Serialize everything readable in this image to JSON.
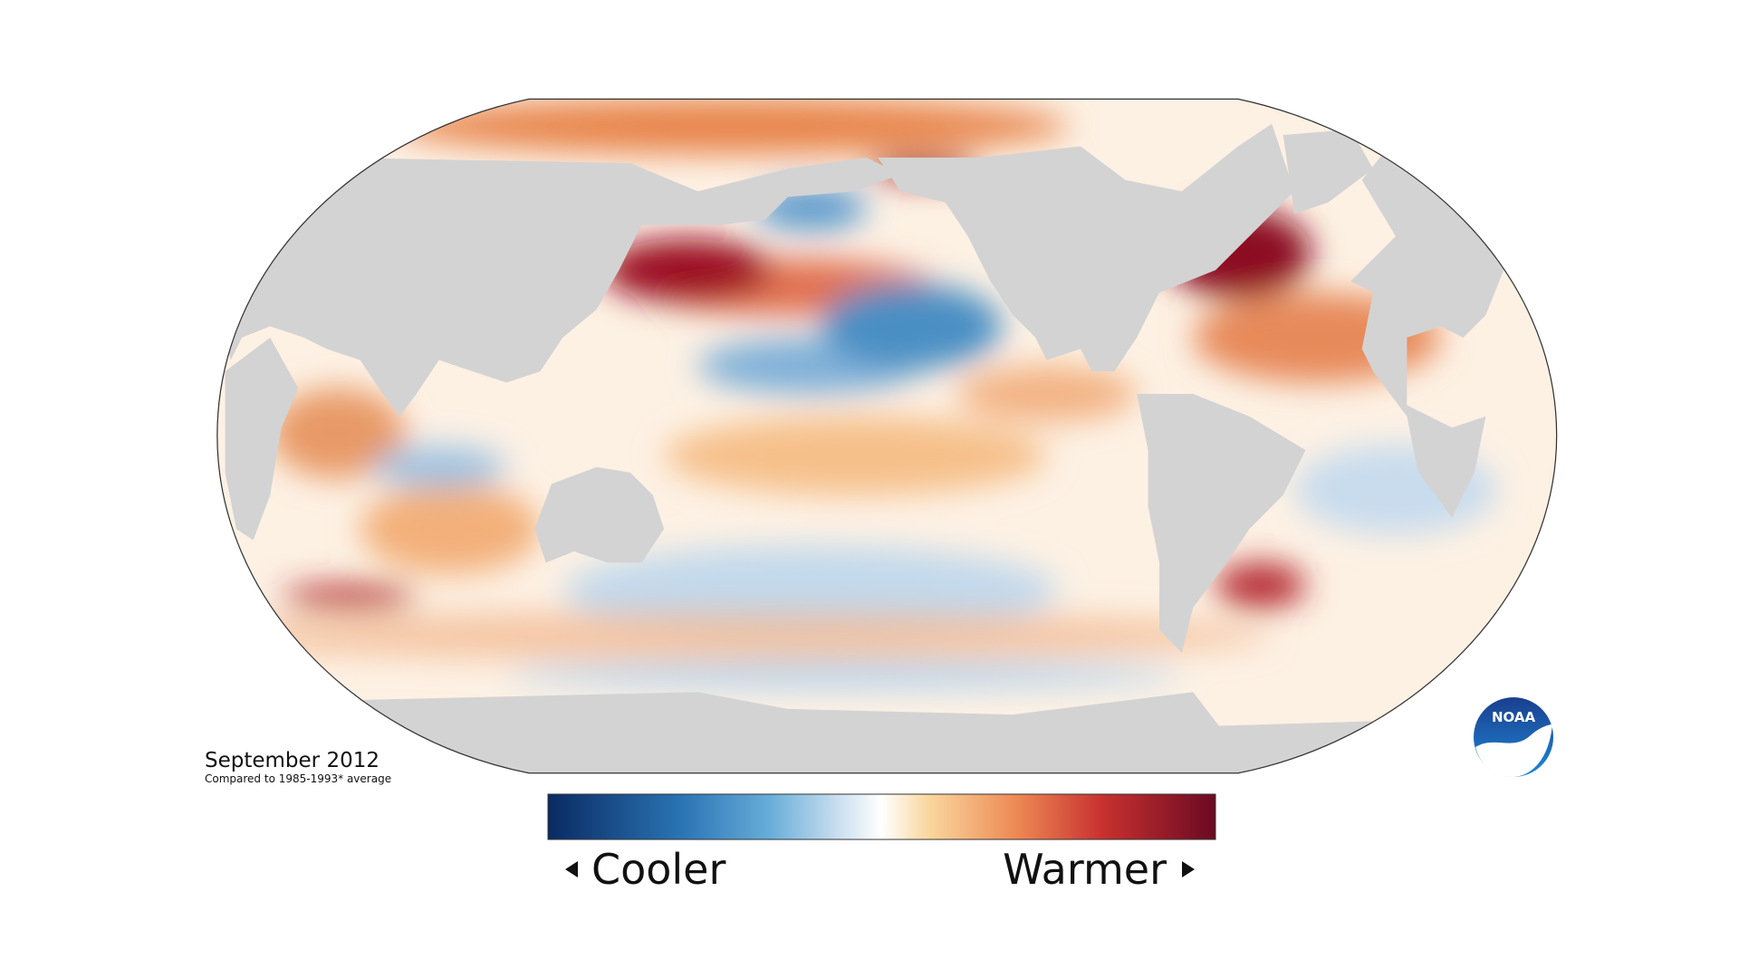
{
  "title": "September 2012",
  "subtitle": "Compared to 1985-1993* average",
  "legend": {
    "low": "Cooler",
    "high": "Warmer"
  },
  "logo": "NOAA"
}
